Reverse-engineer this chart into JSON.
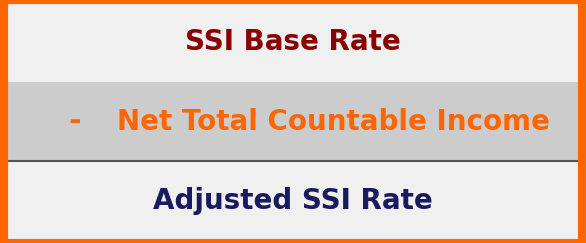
{
  "row1_text": "SSI Base Rate",
  "row1_color": "#8B0000",
  "row1_bg": "#f0f0f0",
  "row2_operator": "-",
  "row2_text": "Net Total Countable Income",
  "row2_color": "#FF6600",
  "row2_bg": "#cccccc",
  "row3_text": "Adjusted SSI Rate",
  "row3_color": "#1a1a5e",
  "row3_bg": "#f0f0f0",
  "border_color": "#FF6600",
  "divider_color": "#555555",
  "font_size": 20,
  "operator_font_size": 22
}
